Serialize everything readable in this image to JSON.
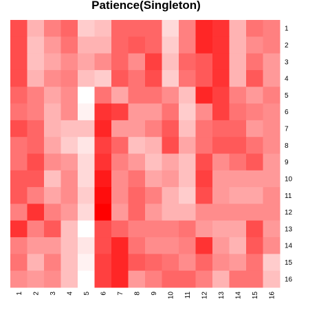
{
  "chart_data": {
    "type": "heatmap",
    "title": "Patience(Singleton)",
    "x_tick_labels": [
      "1",
      "2",
      "3",
      "4",
      "5",
      "6",
      "7",
      "8",
      "9",
      "10",
      "11",
      "12",
      "13",
      "14",
      "15",
      "16"
    ],
    "y_tick_labels": [
      "1",
      "2",
      "3",
      "4",
      "5",
      "6",
      "7",
      "8",
      "9",
      "10",
      "11",
      "12",
      "13",
      "14",
      "15",
      "16"
    ],
    "color_low": "#ffffff",
    "color_high": "#ff0000",
    "value_range": [
      0,
      1
    ],
    "grid": false,
    "values": [
      [
        0.7,
        0.3,
        0.5,
        0.6,
        0.2,
        0.25,
        0.6,
        0.6,
        0.6,
        0.15,
        0.5,
        0.85,
        0.8,
        0.3,
        0.55,
        0.5
      ],
      [
        0.7,
        0.25,
        0.4,
        0.55,
        0.3,
        0.3,
        0.6,
        0.65,
        0.6,
        0.2,
        0.5,
        0.85,
        0.8,
        0.3,
        0.45,
        0.5
      ],
      [
        0.7,
        0.25,
        0.35,
        0.45,
        0.35,
        0.45,
        0.6,
        0.45,
        0.75,
        0.25,
        0.6,
        0.65,
        0.8,
        0.3,
        0.55,
        0.4
      ],
      [
        0.7,
        0.3,
        0.45,
        0.5,
        0.25,
        0.2,
        0.65,
        0.55,
        0.7,
        0.2,
        0.55,
        0.65,
        0.8,
        0.3,
        0.65,
        0.4
      ],
      [
        0.6,
        0.5,
        0.35,
        0.45,
        0.0,
        0.55,
        0.35,
        0.55,
        0.55,
        0.45,
        0.25,
        0.85,
        0.75,
        0.5,
        0.4,
        0.5
      ],
      [
        0.55,
        0.5,
        0.3,
        0.45,
        0.05,
        0.8,
        0.75,
        0.4,
        0.4,
        0.55,
        0.2,
        0.45,
        0.75,
        0.55,
        0.5,
        0.45
      ],
      [
        0.7,
        0.6,
        0.3,
        0.25,
        0.25,
        0.85,
        0.4,
        0.4,
        0.5,
        0.65,
        0.25,
        0.55,
        0.6,
        0.6,
        0.4,
        0.45
      ],
      [
        0.55,
        0.6,
        0.35,
        0.2,
        0.1,
        0.75,
        0.6,
        0.25,
        0.3,
        0.7,
        0.35,
        0.55,
        0.65,
        0.65,
        0.55,
        0.45
      ],
      [
        0.55,
        0.7,
        0.45,
        0.4,
        0.15,
        0.8,
        0.5,
        0.4,
        0.25,
        0.35,
        0.25,
        0.7,
        0.45,
        0.55,
        0.65,
        0.4
      ],
      [
        0.65,
        0.65,
        0.25,
        0.45,
        0.15,
        0.9,
        0.45,
        0.55,
        0.35,
        0.4,
        0.25,
        0.75,
        0.4,
        0.4,
        0.4,
        0.4
      ],
      [
        0.65,
        0.5,
        0.35,
        0.45,
        0.2,
        0.95,
        0.45,
        0.6,
        0.5,
        0.3,
        0.2,
        0.7,
        0.4,
        0.35,
        0.35,
        0.45
      ],
      [
        0.5,
        0.8,
        0.5,
        0.4,
        0.15,
        1.0,
        0.4,
        0.6,
        0.4,
        0.3,
        0.3,
        0.45,
        0.45,
        0.45,
        0.45,
        0.45
      ],
      [
        0.8,
        0.5,
        0.65,
        0.25,
        0.0,
        0.7,
        0.6,
        0.5,
        0.5,
        0.5,
        0.55,
        0.4,
        0.35,
        0.35,
        0.7,
        0.4
      ],
      [
        0.5,
        0.4,
        0.4,
        0.25,
        0.1,
        0.7,
        0.85,
        0.55,
        0.45,
        0.45,
        0.5,
        0.8,
        0.4,
        0.3,
        0.65,
        0.45
      ],
      [
        0.55,
        0.3,
        0.5,
        0.25,
        0.05,
        0.75,
        0.85,
        0.65,
        0.6,
        0.55,
        0.45,
        0.6,
        0.45,
        0.4,
        0.55,
        0.2
      ],
      [
        0.45,
        0.4,
        0.45,
        0.25,
        0.0,
        0.75,
        0.85,
        0.4,
        0.5,
        0.6,
        0.6,
        0.5,
        0.3,
        0.55,
        0.55,
        0.25
      ]
    ]
  }
}
